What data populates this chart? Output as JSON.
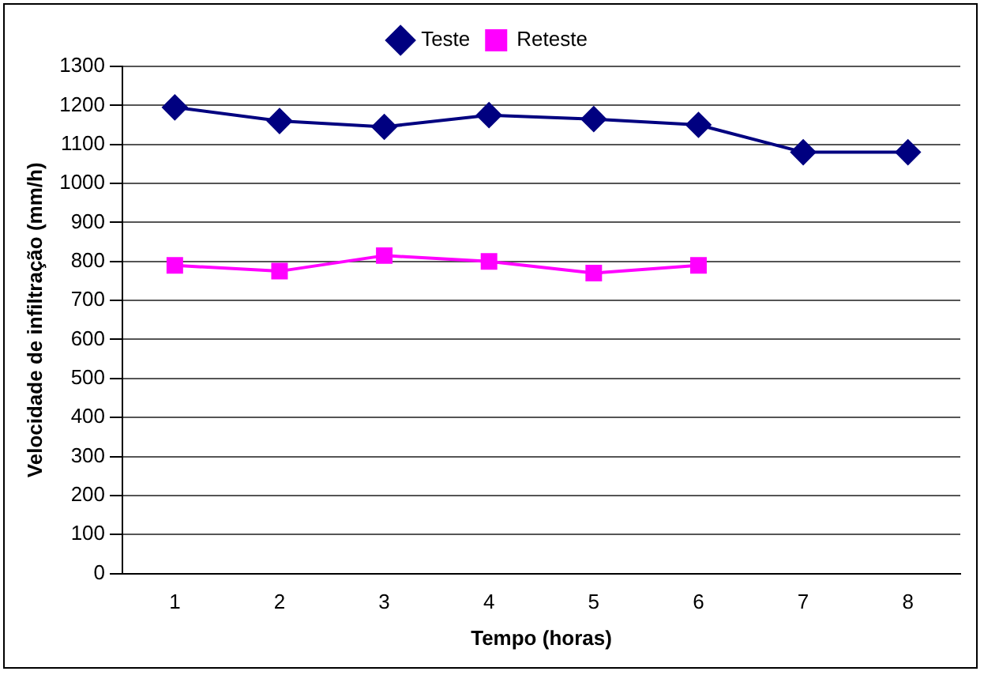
{
  "chart_data": {
    "type": "line",
    "xlabel": "Tempo (horas)",
    "ylabel": "Velocidade de infiltração (mm/h)",
    "categories": [
      "1",
      "2",
      "3",
      "4",
      "5",
      "6",
      "7",
      "8"
    ],
    "series": [
      {
        "name": "Teste",
        "color": "#000080",
        "marker": "diamond",
        "values": [
          1195,
          1160,
          1145,
          1175,
          1165,
          1150,
          1080,
          1080
        ]
      },
      {
        "name": "Reteste",
        "color": "#ff00ff",
        "marker": "square",
        "values": [
          790,
          775,
          815,
          800,
          770,
          790,
          null,
          null
        ]
      }
    ],
    "ylim": [
      0,
      1300
    ],
    "yticks": [
      0,
      100,
      200,
      300,
      400,
      500,
      600,
      700,
      800,
      900,
      1000,
      1100,
      1200,
      1300
    ],
    "grid": "y",
    "legend": "top",
    "line_style": "solid"
  }
}
